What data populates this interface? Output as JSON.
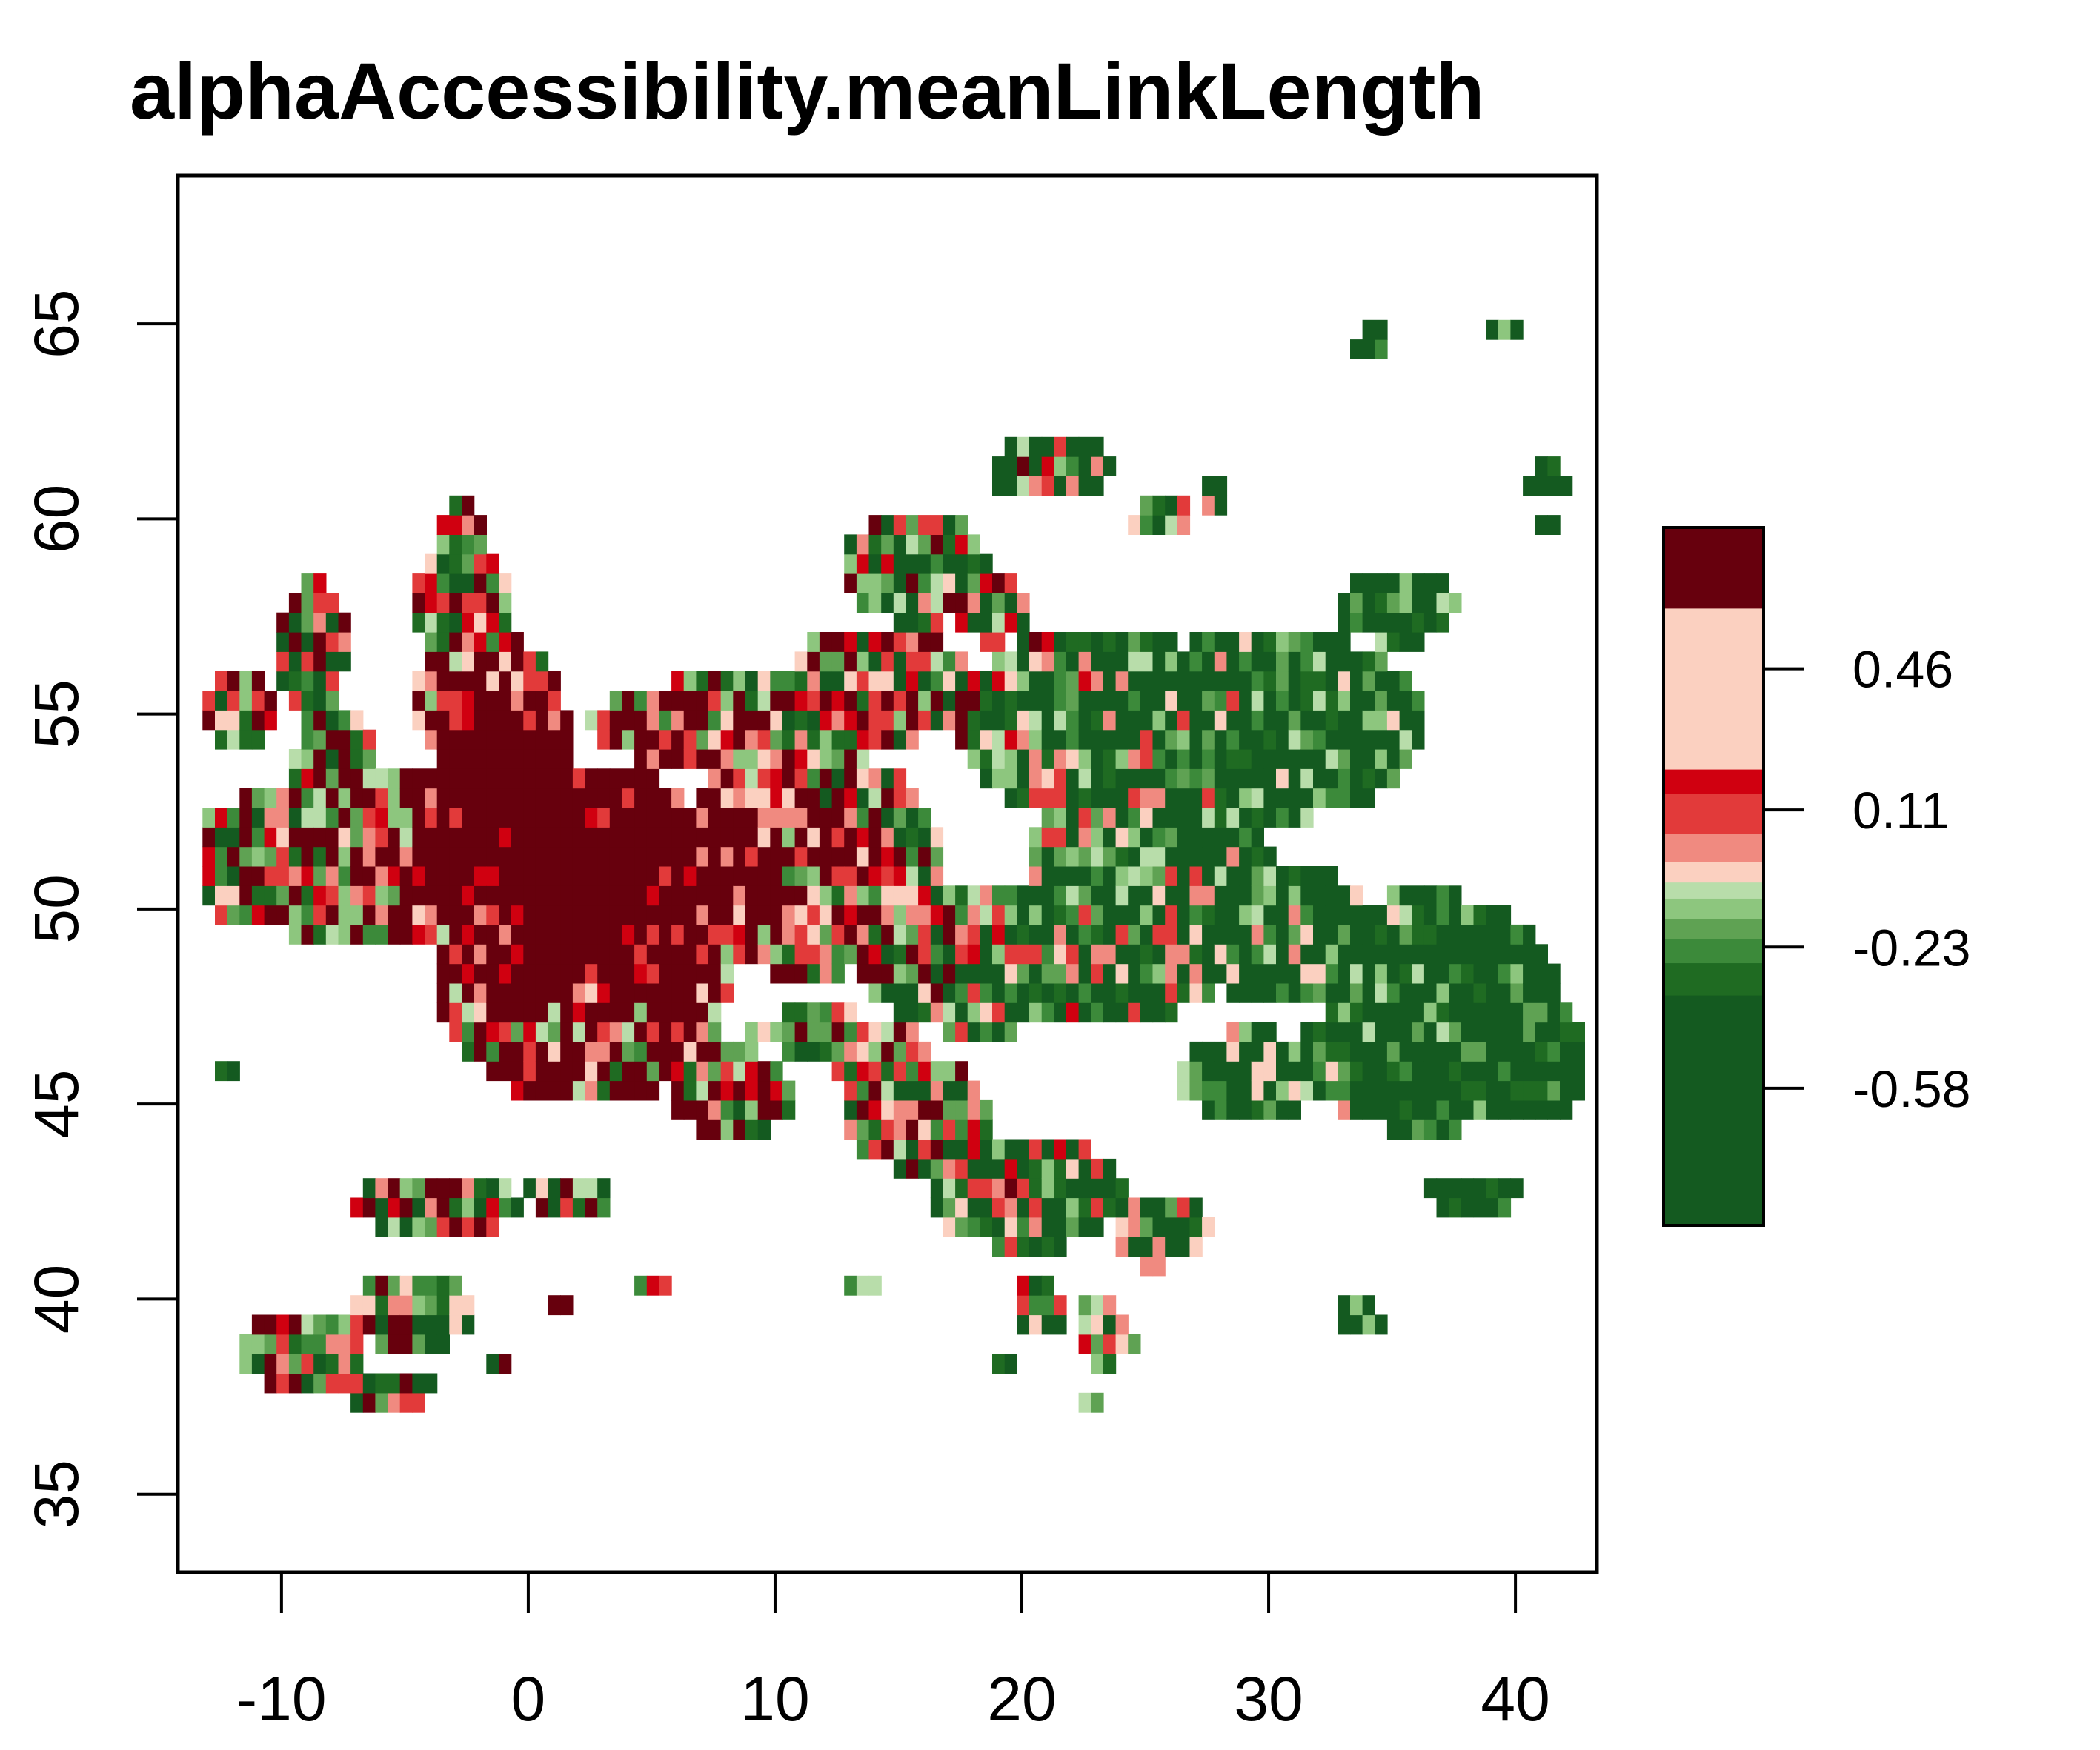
{
  "title": "alphaAccessibility.meanLinkLength",
  "x_axis": {
    "ticks": [
      -10,
      0,
      10,
      20,
      30,
      40
    ],
    "tick_labels": [
      "-10",
      "0",
      "10",
      "20",
      "30",
      "40"
    ],
    "range": [
      -14.2,
      43.3
    ]
  },
  "y_axis": {
    "ticks": [
      35,
      40,
      45,
      50,
      55,
      60,
      65
    ],
    "tick_labels": [
      "35",
      "40",
      "45",
      "50",
      "55",
      "60",
      "65"
    ],
    "range": [
      33.0,
      68.8
    ]
  },
  "legend": {
    "ticks": [
      0.46,
      0.11,
      -0.23,
      -0.58
    ],
    "tick_labels": [
      "0.46",
      "0.11",
      "-0.23",
      "-0.58"
    ],
    "range": [
      -0.92,
      0.81
    ],
    "bins": [
      {
        "from": 0.61,
        "to": 0.81,
        "color": "#67000d"
      },
      {
        "from": 0.15,
        "to": 0.21,
        "color": "#d00010"
      },
      {
        "from": 0.05,
        "to": 0.15,
        "color": "#e23a3a"
      },
      {
        "from": -0.02,
        "to": 0.05,
        "color": "#f08a80"
      },
      {
        "from": -0.07,
        "to": -0.02,
        "color": "#fbd0c0"
      },
      {
        "from": -0.11,
        "to": -0.07,
        "color": "#b8ddaa"
      },
      {
        "from": -0.16,
        "to": -0.11,
        "color": "#8dc67e"
      },
      {
        "from": -0.21,
        "to": -0.16,
        "color": "#5fa253"
      },
      {
        "from": -0.27,
        "to": -0.21,
        "color": "#3c8a3a"
      },
      {
        "from": -0.35,
        "to": -0.27,
        "color": "#1f6b22"
      },
      {
        "from": -0.92,
        "to": -0.35,
        "color": "#145a20"
      }
    ]
  },
  "colors": {
    "dark_red": "#67000d",
    "red": "#d00010",
    "mid_red": "#e23a3a",
    "salmon": "#f08a80",
    "pale_pink": "#fbd0c0",
    "pale_green": "#b8ddaa",
    "light_green": "#8dc67e",
    "mid_green": "#5fa253",
    "green": "#3c8a3a",
    "dark_green": "#1f6b22",
    "darkest_green": "#145a20"
  }
}
